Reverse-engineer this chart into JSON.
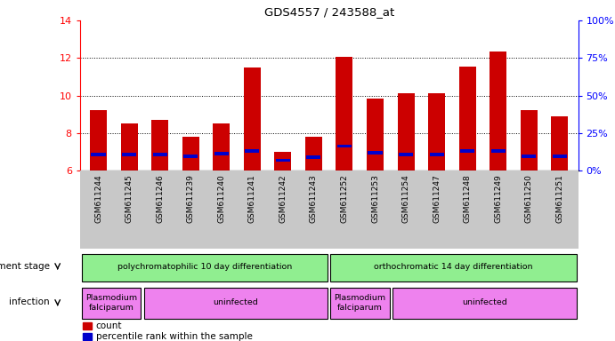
{
  "title": "GDS4557 / 243588_at",
  "samples": [
    "GSM611244",
    "GSM611245",
    "GSM611246",
    "GSM611239",
    "GSM611240",
    "GSM611241",
    "GSM611242",
    "GSM611243",
    "GSM611252",
    "GSM611253",
    "GSM611254",
    "GSM611247",
    "GSM611248",
    "GSM611249",
    "GSM611250",
    "GSM611251"
  ],
  "count_values": [
    9.2,
    8.5,
    8.7,
    7.8,
    8.5,
    11.5,
    7.0,
    7.8,
    12.05,
    9.85,
    10.1,
    10.1,
    11.55,
    12.35,
    9.2,
    8.9
  ],
  "percentile_values": [
    6.85,
    6.85,
    6.85,
    6.75,
    6.9,
    7.05,
    6.55,
    6.7,
    7.3,
    6.95,
    6.85,
    6.85,
    7.05,
    7.05,
    6.75,
    6.75
  ],
  "ymin": 6,
  "ymax": 14,
  "y_ticks": [
    6,
    8,
    10,
    12,
    14
  ],
  "right_y_ticks": [
    0,
    25,
    50,
    75,
    100
  ],
  "bar_color": "#cc0000",
  "percentile_color": "#0000cc",
  "gray_bg": "#c8c8c8",
  "plot_bg": "#ffffff",
  "green_color": "#90ee90",
  "violet_color": "#ee82ee",
  "legend_count_label": "count",
  "legend_percentile_label": "percentile rank within the sample",
  "dev_stage_label": "development stage",
  "infection_label": "infection",
  "inf_groups": [
    {
      "start": 0,
      "end": 2,
      "label": "Plasmodium\nfalciparum"
    },
    {
      "start": 2,
      "end": 8,
      "label": "uninfected"
    },
    {
      "start": 8,
      "end": 10,
      "label": "Plasmodium\nfalciparum"
    },
    {
      "start": 10,
      "end": 16,
      "label": "uninfected"
    }
  ],
  "dev_groups": [
    {
      "start": 0,
      "end": 8,
      "label": "polychromatophilic 10 day differentiation"
    },
    {
      "start": 8,
      "end": 16,
      "label": "orthochromatic 14 day differentiation"
    }
  ]
}
